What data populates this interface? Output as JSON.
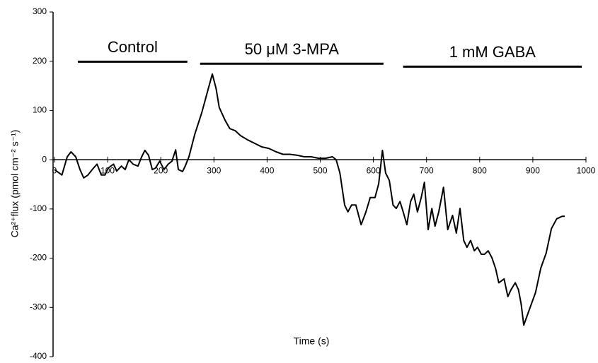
{
  "chart_data": {
    "type": "line",
    "x": [
      0,
      14,
      24,
      31,
      40,
      48,
      55,
      63,
      71,
      80,
      88,
      95,
      101,
      111,
      117,
      126,
      133,
      140,
      148,
      157,
      164,
      170,
      177,
      184,
      190,
      198,
      206,
      214,
      221,
      228,
      233,
      241,
      246,
      253,
      264,
      277,
      297,
      304,
      310,
      321,
      330,
      340,
      350,
      364,
      377,
      390,
      403,
      417,
      430,
      443,
      457,
      470,
      483,
      497,
      510,
      523,
      530,
      537,
      546,
      552,
      559,
      567,
      577,
      586,
      594,
      603,
      610,
      617,
      623,
      630,
      637,
      643,
      650,
      656,
      663,
      670,
      676,
      683,
      690,
      696,
      703,
      710,
      716,
      723,
      732,
      740,
      749,
      756,
      763,
      770,
      776,
      783,
      790,
      796,
      803,
      809,
      816,
      823,
      830,
      836,
      846,
      853,
      859,
      867,
      873,
      878,
      883,
      895,
      905,
      915,
      925,
      935,
      945,
      955,
      960
    ],
    "values": [
      -20,
      -31,
      6,
      16,
      6,
      -20,
      -37,
      -31,
      -20,
      -9,
      -31,
      -31,
      -17,
      -9,
      -23,
      -13,
      -20,
      0,
      -9,
      -13,
      6,
      19,
      9,
      -20,
      -17,
      -3,
      -20,
      -9,
      -3,
      20,
      -20,
      -24,
      -13,
      6,
      52,
      95,
      174,
      145,
      106,
      80,
      63,
      59,
      49,
      40,
      33,
      26,
      23,
      16,
      11,
      11,
      9,
      6,
      6,
      3,
      3,
      6,
      0,
      -27,
      -92,
      -106,
      -92,
      -92,
      -132,
      -106,
      -77,
      -77,
      -49,
      19,
      -27,
      -42,
      -92,
      -99,
      -85,
      -106,
      -132,
      -85,
      -70,
      -106,
      -77,
      -46,
      -142,
      -99,
      -135,
      -106,
      -56,
      -142,
      -113,
      -149,
      -99,
      -164,
      -178,
      -164,
      -185,
      -178,
      -192,
      -192,
      -185,
      -199,
      -221,
      -250,
      -242,
      -278,
      -264,
      -250,
      -264,
      -293,
      -336,
      -300,
      -270,
      -220,
      -190,
      -140,
      -120,
      -115,
      -115
    ],
    "color": "#000000",
    "xlabel": "Time (s)",
    "ylabel": "Ca²⁺flux (pmol cm⁻² s⁻¹)",
    "xlim": [
      0,
      1000
    ],
    "xticks": [
      0,
      100,
      200,
      300,
      400,
      500,
      600,
      700,
      800,
      900,
      1000
    ],
    "ylim": [
      -400,
      300
    ],
    "yticks": [
      -400,
      -300,
      -200,
      -100,
      0,
      100,
      200,
      300
    ],
    "annotations": [
      {
        "text": "Control",
        "x": [
          44,
          250
        ],
        "y": 199
      },
      {
        "text": "50 μM 3-MPA",
        "x": [
          274,
          619
        ],
        "y": 195
      },
      {
        "text": "1 mM GABA",
        "x": [
          656,
          992
        ],
        "y": 189
      }
    ]
  }
}
